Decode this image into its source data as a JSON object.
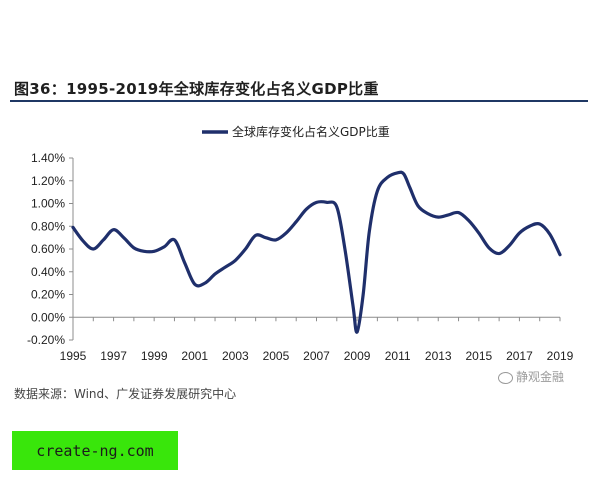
{
  "figure_title": "图36：1995-2019年全球库存变化占名义GDP比重",
  "source": "数据来源：Wind、广发证券发展研究中心",
  "watermark": "静观金融",
  "footer_badge": "create-ng.com",
  "colors": {
    "line": "#1f2f6b",
    "rule": "#1f3864",
    "badge": "#39e60b"
  },
  "chart_data": {
    "type": "line",
    "title": "",
    "xlabel": "",
    "ylabel": "",
    "legend": "top-center",
    "grid": false,
    "xlim": [
      1995,
      2019
    ],
    "ylim": [
      -0.2,
      1.4
    ],
    "x_ticks": [
      "1995",
      "1997",
      "1999",
      "2001",
      "2003",
      "2005",
      "2007",
      "2009",
      "2011",
      "2013",
      "2015",
      "2017",
      "2019"
    ],
    "y_ticks": [
      "-0.20%",
      "0.00%",
      "0.20%",
      "0.40%",
      "0.60%",
      "0.80%",
      "1.00%",
      "1.20%",
      "1.40%"
    ],
    "series": [
      {
        "name": "全球库存变化占名义GDP比重",
        "x": [
          1995,
          1995.5,
          1996,
          1996.5,
          1997,
          1997.5,
          1998,
          1998.5,
          1999,
          1999.5,
          2000,
          2000.5,
          2001,
          2001.5,
          2002,
          2002.5,
          2003,
          2003.5,
          2004,
          2004.5,
          2005,
          2005.5,
          2006,
          2006.5,
          2007,
          2007.5,
          2008,
          2008.4,
          2008.8,
          2009,
          2009.3,
          2009.6,
          2010,
          2010.5,
          2011,
          2011.3,
          2011.6,
          2012,
          2012.5,
          2013,
          2013.5,
          2014,
          2014.5,
          2015,
          2015.5,
          2016,
          2016.5,
          2017,
          2017.5,
          2018,
          2018.5,
          2019
        ],
        "values": [
          0.79,
          0.67,
          0.6,
          0.68,
          0.77,
          0.7,
          0.61,
          0.58,
          0.58,
          0.62,
          0.68,
          0.48,
          0.29,
          0.3,
          0.38,
          0.44,
          0.5,
          0.6,
          0.72,
          0.7,
          0.68,
          0.74,
          0.84,
          0.95,
          1.01,
          1.01,
          0.97,
          0.6,
          0.1,
          -0.13,
          0.2,
          0.75,
          1.11,
          1.23,
          1.27,
          1.26,
          1.14,
          0.98,
          0.91,
          0.88,
          0.9,
          0.92,
          0.85,
          0.74,
          0.61,
          0.56,
          0.63,
          0.74,
          0.8,
          0.82,
          0.73,
          0.55
        ]
      }
    ]
  }
}
